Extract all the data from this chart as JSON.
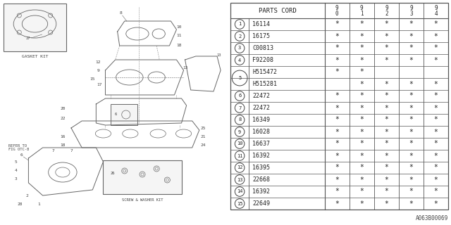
{
  "table_header": "PARTS CORD",
  "col_headers": [
    "9\n0",
    "9\n1",
    "9\n2",
    "9\n3",
    "9\n4"
  ],
  "rows": [
    {
      "num": "1",
      "part": "16114",
      "marks": [
        "*",
        "*",
        "*",
        "*",
        "*"
      ],
      "sub": false
    },
    {
      "num": "2",
      "part": "16175",
      "marks": [
        "*",
        "*",
        "*",
        "*",
        "*"
      ],
      "sub": false
    },
    {
      "num": "3",
      "part": "C00813",
      "marks": [
        "*",
        "*",
        "*",
        "*",
        "*"
      ],
      "sub": false
    },
    {
      "num": "4",
      "part": "F92208",
      "marks": [
        "*",
        "*",
        "*",
        "*",
        "*"
      ],
      "sub": false
    },
    {
      "num": "5",
      "part": "H515472",
      "marks": [
        "*",
        "*",
        "",
        "",
        ""
      ],
      "sub": false,
      "shared": true
    },
    {
      "num": "5",
      "part": "H515281",
      "marks": [
        "",
        "*",
        "*",
        "*",
        "*"
      ],
      "sub": true,
      "shared": true
    },
    {
      "num": "6",
      "part": "22472",
      "marks": [
        "*",
        "*",
        "*",
        "*",
        "*"
      ],
      "sub": false
    },
    {
      "num": "7",
      "part": "22472",
      "marks": [
        "*",
        "*",
        "*",
        "*",
        "*"
      ],
      "sub": false
    },
    {
      "num": "8",
      "part": "16349",
      "marks": [
        "*",
        "*",
        "*",
        "*",
        "*"
      ],
      "sub": false
    },
    {
      "num": "9",
      "part": "16028",
      "marks": [
        "*",
        "*",
        "*",
        "*",
        "*"
      ],
      "sub": false
    },
    {
      "num": "10",
      "part": "16637",
      "marks": [
        "*",
        "*",
        "*",
        "*",
        "*"
      ],
      "sub": false
    },
    {
      "num": "11",
      "part": "16392",
      "marks": [
        "*",
        "*",
        "*",
        "*",
        "*"
      ],
      "sub": false
    },
    {
      "num": "12",
      "part": "16395",
      "marks": [
        "*",
        "*",
        "*",
        "*",
        "*"
      ],
      "sub": false
    },
    {
      "num": "13",
      "part": "22668",
      "marks": [
        "*",
        "*",
        "*",
        "*",
        "*"
      ],
      "sub": false
    },
    {
      "num": "14",
      "part": "16392",
      "marks": [
        "*",
        "*",
        "*",
        "*",
        "*"
      ],
      "sub": false
    },
    {
      "num": "15",
      "part": "22649",
      "marks": [
        "*",
        "*",
        "*",
        "*",
        "*"
      ],
      "sub": false
    }
  ],
  "diagram_label": "A063B00069",
  "gasket_kit_label": "GASKET KIT",
  "refer_label": "REFER TO\nFIG OTC-8",
  "screw_washer_label": "SCREW & WASHER KIT",
  "bg_color": "#ffffff",
  "line_color": "#666666",
  "text_color": "#444444"
}
